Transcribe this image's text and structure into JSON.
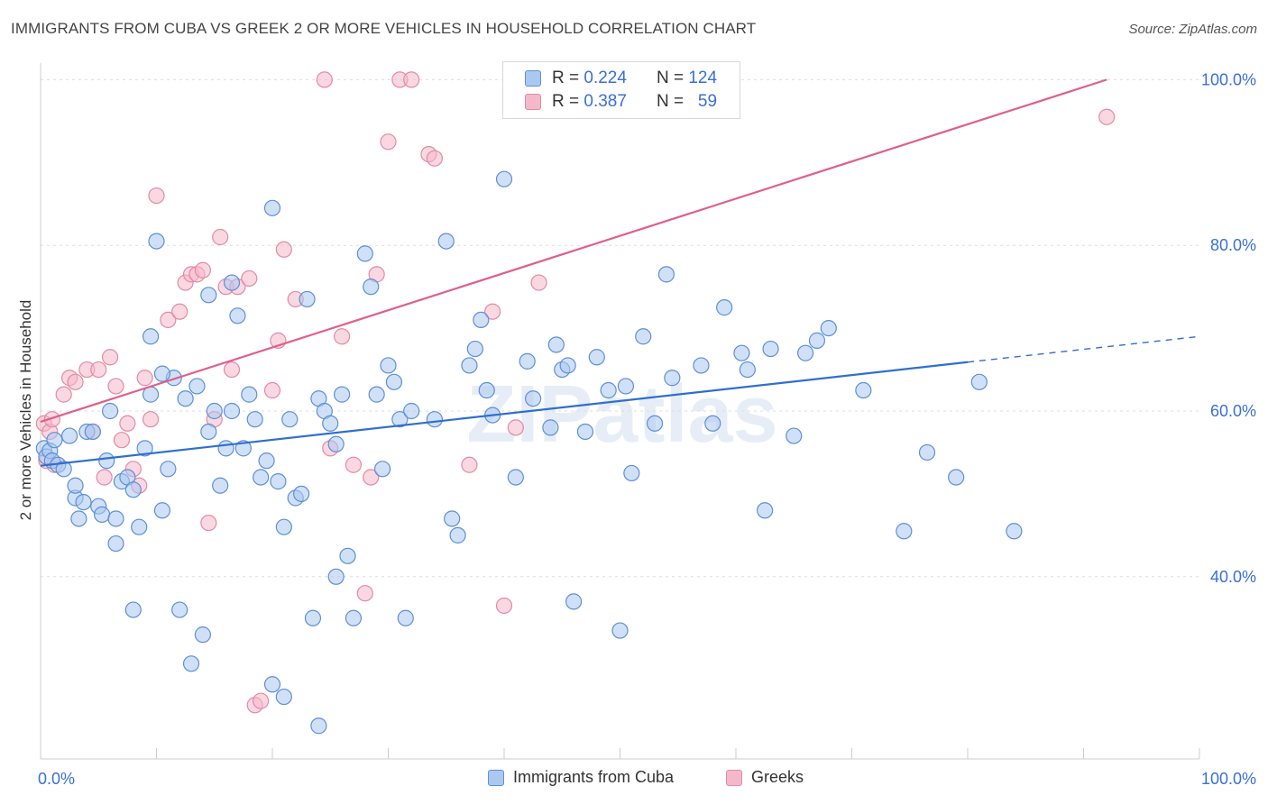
{
  "title": "IMMIGRANTS FROM CUBA VS GREEK 2 OR MORE VEHICLES IN HOUSEHOLD CORRELATION CHART",
  "source": "Source: ZipAtlas.com",
  "watermark": "ZIPatlas",
  "legend": {
    "r_label": "R =",
    "n_label": "N =",
    "rows": [
      {
        "r": "0.224",
        "n": "124"
      },
      {
        "r": "0.387",
        "n": "59"
      }
    ]
  },
  "colors": {
    "blue_fill": "#aac8f0",
    "blue_stroke": "#5e8fd6",
    "blue_line": "#2f6fce",
    "pink_fill": "#f5b8cb",
    "pink_stroke": "#e28aa7",
    "pink_line": "#e05f8a",
    "tick_label": "#3a6fd8",
    "grid": "#dddddd"
  },
  "chart_data": {
    "type": "scatter",
    "title": "IMMIGRANTS FROM CUBA VS GREEK 2 OR MORE VEHICLES IN HOUSEHOLD CORRELATION CHART",
    "xlabel": "",
    "ylabel": "2 or more Vehicles in Household",
    "xlim": [
      0,
      100
    ],
    "ylim": [
      18,
      102
    ],
    "x_tick_labels": [
      "0.0%",
      "100.0%"
    ],
    "y_ticks": [
      40,
      60,
      80,
      100
    ],
    "y_tick_labels": [
      "40.0%",
      "60.0%",
      "80.0%",
      "100.0%"
    ],
    "grid": true,
    "legend_position": "top-center",
    "series": [
      {
        "name": "Immigrants from Cuba",
        "r": 0.224,
        "n": 124,
        "trend": {
          "x": [
            0,
            80
          ],
          "y": [
            53.4,
            65.9
          ],
          "dashed_to": {
            "x": 100,
            "y": 69.0
          }
        },
        "points": [
          [
            0.3,
            55.5
          ],
          [
            0.5,
            54.5
          ],
          [
            0.8,
            55.2
          ],
          [
            1,
            54
          ],
          [
            1.2,
            56.5
          ],
          [
            1.5,
            53.5
          ],
          [
            2,
            53
          ],
          [
            2.5,
            57
          ],
          [
            3,
            49.5
          ],
          [
            3.3,
            47
          ],
          [
            3.7,
            49
          ],
          [
            4,
            57.5
          ],
          [
            4.5,
            57.5
          ],
          [
            5,
            48.5
          ],
          [
            5.3,
            47.5
          ],
          [
            5.7,
            54
          ],
          [
            6,
            60
          ],
          [
            6.5,
            47
          ],
          [
            7,
            51.5
          ],
          [
            7.5,
            52
          ],
          [
            8,
            50.5
          ],
          [
            8.5,
            46
          ],
          [
            9,
            55.5
          ],
          [
            9.5,
            62
          ],
          [
            10,
            80.5
          ],
          [
            10.5,
            48
          ],
          [
            11,
            53
          ],
          [
            11.5,
            64
          ],
          [
            12,
            36
          ],
          [
            12.5,
            61.5
          ],
          [
            13,
            29.5
          ],
          [
            13.5,
            63
          ],
          [
            14,
            33
          ],
          [
            14.5,
            57.5
          ],
          [
            15,
            60
          ],
          [
            15.5,
            51
          ],
          [
            16,
            55.5
          ],
          [
            16.5,
            60
          ],
          [
            17,
            71.5
          ],
          [
            17.5,
            55.5
          ],
          [
            18,
            62
          ],
          [
            18.5,
            59
          ],
          [
            19,
            52
          ],
          [
            19.5,
            54
          ],
          [
            20,
            84.5
          ],
          [
            20.5,
            51.5
          ],
          [
            21,
            46
          ],
          [
            21.5,
            59
          ],
          [
            22,
            49.5
          ],
          [
            22.5,
            50
          ],
          [
            23,
            73.5
          ],
          [
            23.5,
            35
          ],
          [
            24,
            61.5
          ],
          [
            24.5,
            60
          ],
          [
            25,
            58.5
          ],
          [
            25.5,
            56
          ],
          [
            26,
            62
          ],
          [
            26.5,
            42.5
          ],
          [
            27,
            35
          ],
          [
            28,
            79
          ],
          [
            28.5,
            75
          ],
          [
            29,
            62
          ],
          [
            29.5,
            53
          ],
          [
            30,
            65.5
          ],
          [
            30.5,
            63.5
          ],
          [
            31,
            59
          ],
          [
            31.5,
            35
          ],
          [
            32,
            60
          ],
          [
            34,
            59
          ],
          [
            35,
            80.5
          ],
          [
            35.5,
            47
          ],
          [
            36,
            45
          ],
          [
            37,
            65.5
          ],
          [
            37.5,
            67.5
          ],
          [
            38,
            71
          ],
          [
            38.5,
            62.5
          ],
          [
            39,
            59.5
          ],
          [
            40,
            88
          ],
          [
            41,
            52
          ],
          [
            42,
            66
          ],
          [
            42.5,
            61.5
          ],
          [
            44,
            58
          ],
          [
            44.5,
            68
          ],
          [
            45,
            65
          ],
          [
            45.5,
            65.5
          ],
          [
            46,
            37
          ],
          [
            47,
            57.5
          ],
          [
            48,
            66.5
          ],
          [
            49,
            62.5
          ],
          [
            50,
            33.5
          ],
          [
            50.5,
            63
          ],
          [
            51,
            52.5
          ],
          [
            52,
            69
          ],
          [
            53,
            58.5
          ],
          [
            54,
            76.5
          ],
          [
            54.5,
            64
          ],
          [
            57,
            65.5
          ],
          [
            58,
            58.5
          ],
          [
            59,
            72.5
          ],
          [
            60.5,
            67
          ],
          [
            61,
            65
          ],
          [
            62.5,
            48
          ],
          [
            63,
            67.5
          ],
          [
            65,
            57
          ],
          [
            66,
            67
          ],
          [
            67,
            68.5
          ],
          [
            68,
            70
          ],
          [
            71,
            62.5
          ],
          [
            74.5,
            45.5
          ],
          [
            76.5,
            55
          ],
          [
            79,
            52
          ],
          [
            81,
            63.5
          ],
          [
            84,
            45.5
          ],
          [
            10.5,
            64.5
          ],
          [
            14.5,
            74
          ],
          [
            9.5,
            69
          ],
          [
            3,
            51
          ],
          [
            6.5,
            44
          ],
          [
            8,
            36
          ],
          [
            16.5,
            75.5
          ],
          [
            20,
            27
          ],
          [
            25.5,
            40
          ],
          [
            21,
            25.5
          ],
          [
            24,
            22
          ]
        ]
      },
      {
        "name": "Greeks",
        "r": 0.387,
        "n": 59,
        "trend": {
          "x": [
            0,
            92
          ],
          "y": [
            58.7,
            100.0
          ]
        },
        "points": [
          [
            0.3,
            58.5
          ],
          [
            0.5,
            54
          ],
          [
            0.8,
            57.5
          ],
          [
            1,
            59
          ],
          [
            1.2,
            53.5
          ],
          [
            2,
            62
          ],
          [
            2.5,
            64
          ],
          [
            3,
            63.5
          ],
          [
            4,
            65
          ],
          [
            4.5,
            57.5
          ],
          [
            5,
            65
          ],
          [
            5.5,
            52
          ],
          [
            6,
            66.5
          ],
          [
            6.5,
            63
          ],
          [
            7,
            56.5
          ],
          [
            7.5,
            58.5
          ],
          [
            8,
            53
          ],
          [
            8.5,
            51
          ],
          [
            9,
            64
          ],
          [
            9.5,
            59
          ],
          [
            10,
            86
          ],
          [
            11,
            71
          ],
          [
            12,
            72
          ],
          [
            12.5,
            75.5
          ],
          [
            13,
            76.5
          ],
          [
            13.5,
            76.5
          ],
          [
            14,
            77
          ],
          [
            14.5,
            46.5
          ],
          [
            15,
            59
          ],
          [
            15.5,
            81
          ],
          [
            16,
            75
          ],
          [
            16.5,
            65
          ],
          [
            17,
            75
          ],
          [
            18,
            76
          ],
          [
            18.5,
            24.5
          ],
          [
            19,
            25
          ],
          [
            20,
            62.5
          ],
          [
            20.5,
            68.5
          ],
          [
            21,
            79.5
          ],
          [
            22,
            73.5
          ],
          [
            24.5,
            100
          ],
          [
            25,
            55.5
          ],
          [
            26,
            69
          ],
          [
            27,
            53.5
          ],
          [
            28,
            38
          ],
          [
            28.5,
            52
          ],
          [
            29,
            76.5
          ],
          [
            30,
            92.5
          ],
          [
            31,
            100
          ],
          [
            32,
            100
          ],
          [
            33.5,
            91
          ],
          [
            34,
            90.5
          ],
          [
            37,
            53.5
          ],
          [
            39,
            72
          ],
          [
            41,
            58
          ],
          [
            40,
            36.5
          ],
          [
            43,
            75.5
          ],
          [
            52,
            100
          ],
          [
            92,
            95.5
          ]
        ]
      }
    ]
  }
}
